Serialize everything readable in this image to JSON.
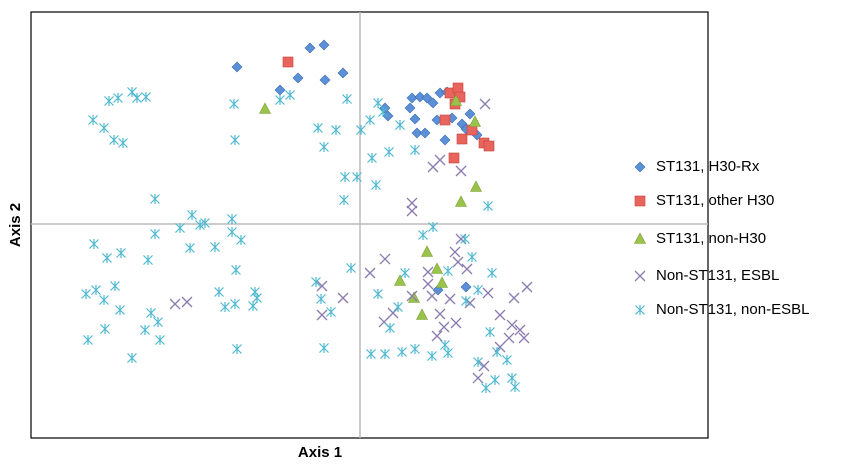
{
  "chart_data": {
    "type": "scatter",
    "xlabel": "Axis 1",
    "ylabel": "Axis 2",
    "xlim": [
      -329,
      348
    ],
    "ylim": [
      -214,
      212
    ],
    "legend": "right",
    "series": [
      {
        "name": "ST131, H30-Rx",
        "color": "#5b8fd6",
        "marker": "diamond",
        "x": [
          -123,
          -50,
          -36,
          -17,
          -35,
          -62,
          -80,
          52,
          60,
          67,
          73,
          80,
          87,
          25,
          28,
          50,
          55,
          57,
          65,
          77,
          85,
          92,
          102,
          106,
          110,
          117,
          78,
          106
        ],
        "y": [
          157,
          176,
          179,
          151,
          144,
          146,
          134,
          126,
          127,
          126,
          121,
          131,
          132,
          116,
          108,
          116,
          105,
          91,
          91,
          104,
          84,
          106,
          100,
          95,
          110,
          89,
          -66,
          -63
        ]
      },
      {
        "name": "ST131, other H30",
        "color": "#e8645c",
        "marker": "square",
        "x": [
          -72,
          90,
          98,
          95,
          85,
          102,
          94,
          112,
          124,
          129,
          100
        ],
        "y": [
          162,
          131,
          136,
          120,
          104,
          85,
          66,
          94,
          81,
          78,
          127
        ]
      },
      {
        "name": "ST131, non-H30",
        "color": "#9bc34c",
        "marker": "triangle",
        "x": [
          -95,
          96,
          115,
          116,
          101,
          67,
          77,
          40,
          54,
          62,
          82
        ],
        "y": [
          115,
          123,
          102,
          37,
          22,
          -28,
          -45,
          -57,
          -74,
          -91,
          -59
        ]
      },
      {
        "name": "Non-ST131, ESBL",
        "color": "#8a7bb0",
        "marker": "x",
        "x": [
          125,
          80,
          73,
          101,
          52,
          52,
          101,
          95,
          98,
          107,
          68,
          25,
          -38,
          -17,
          24,
          33,
          68,
          72,
          90,
          96,
          80,
          110,
          128,
          154,
          167,
          140,
          152,
          160,
          164,
          149,
          140,
          124,
          118,
          -173,
          -185,
          -38,
          10,
          52,
          84,
          77
        ],
        "y": [
          120,
          64,
          57,
          53,
          21,
          13,
          -15,
          -28,
          -38,
          -45,
          -48,
          -35,
          -62,
          -74,
          -98,
          -89,
          -60,
          -72,
          -75,
          -99,
          -90,
          -79,
          -69,
          -74,
          -63,
          -91,
          -101,
          -106,
          -114,
          -114,
          -123,
          -142,
          -154,
          -78,
          -80,
          -91,
          -49,
          -72,
          -103,
          -112
        ]
      },
      {
        "name": "Non-ST131, non-ESBL",
        "color": "#4fb8cf",
        "marker": "star",
        "x": [
          -251,
          -242,
          -228,
          -223,
          -214,
          -267,
          -256,
          -246,
          -237,
          -126,
          -125,
          -80,
          -70,
          -42,
          -36,
          -24,
          -13,
          1,
          10,
          18,
          23,
          40,
          12,
          29,
          55,
          -15,
          -3,
          16,
          -16,
          -205,
          -168,
          -160,
          -155,
          -180,
          -128,
          -128,
          -119,
          -145,
          -170,
          -205,
          -212,
          -266,
          -239,
          -253,
          -274,
          -264,
          -256,
          -245,
          -240,
          -255,
          -272,
          -209,
          -202,
          -215,
          -200,
          -228,
          -141,
          -135,
          -125,
          -105,
          -107,
          -103,
          -124,
          -123,
          -44,
          -39,
          -29,
          -36,
          -9,
          18,
          30,
          38,
          25,
          11,
          42,
          55,
          72,
          85,
          106,
          118,
          132,
          88,
          112,
          105,
          130,
          137,
          147,
          152,
          155,
          126,
          135,
          45,
          88,
          118,
          128,
          73,
          63
        ],
        "y": [
          123,
          126,
          132,
          126,
          127,
          104,
          96,
          84,
          81,
          120,
          84,
          124,
          129,
          96,
          77,
          94,
          125,
          94,
          104,
          121,
          112,
          99,
          66,
          72,
          74,
          47,
          47,
          39,
          24,
          25,
          9,
          -1,
          1,
          -4,
          5,
          -8,
          -16,
          -23,
          -24,
          -10,
          -36,
          -20,
          -29,
          -34,
          -70,
          -66,
          -76,
          -62,
          -86,
          -105,
          -116,
          -89,
          -98,
          -106,
          -116,
          -134,
          -68,
          -83,
          -80,
          -68,
          -82,
          -74,
          -46,
          -125,
          -58,
          -75,
          -88,
          -124,
          -44,
          -70,
          -104,
          -83,
          -130,
          -130,
          -128,
          -125,
          -132,
          -121,
          -77,
          -66,
          -49,
          -47,
          -33,
          -15,
          -108,
          -128,
          -136,
          -154,
          -163,
          -164,
          -156,
          -49,
          -129,
          -138,
          18,
          -3,
          -11
        ]
      }
    ]
  }
}
